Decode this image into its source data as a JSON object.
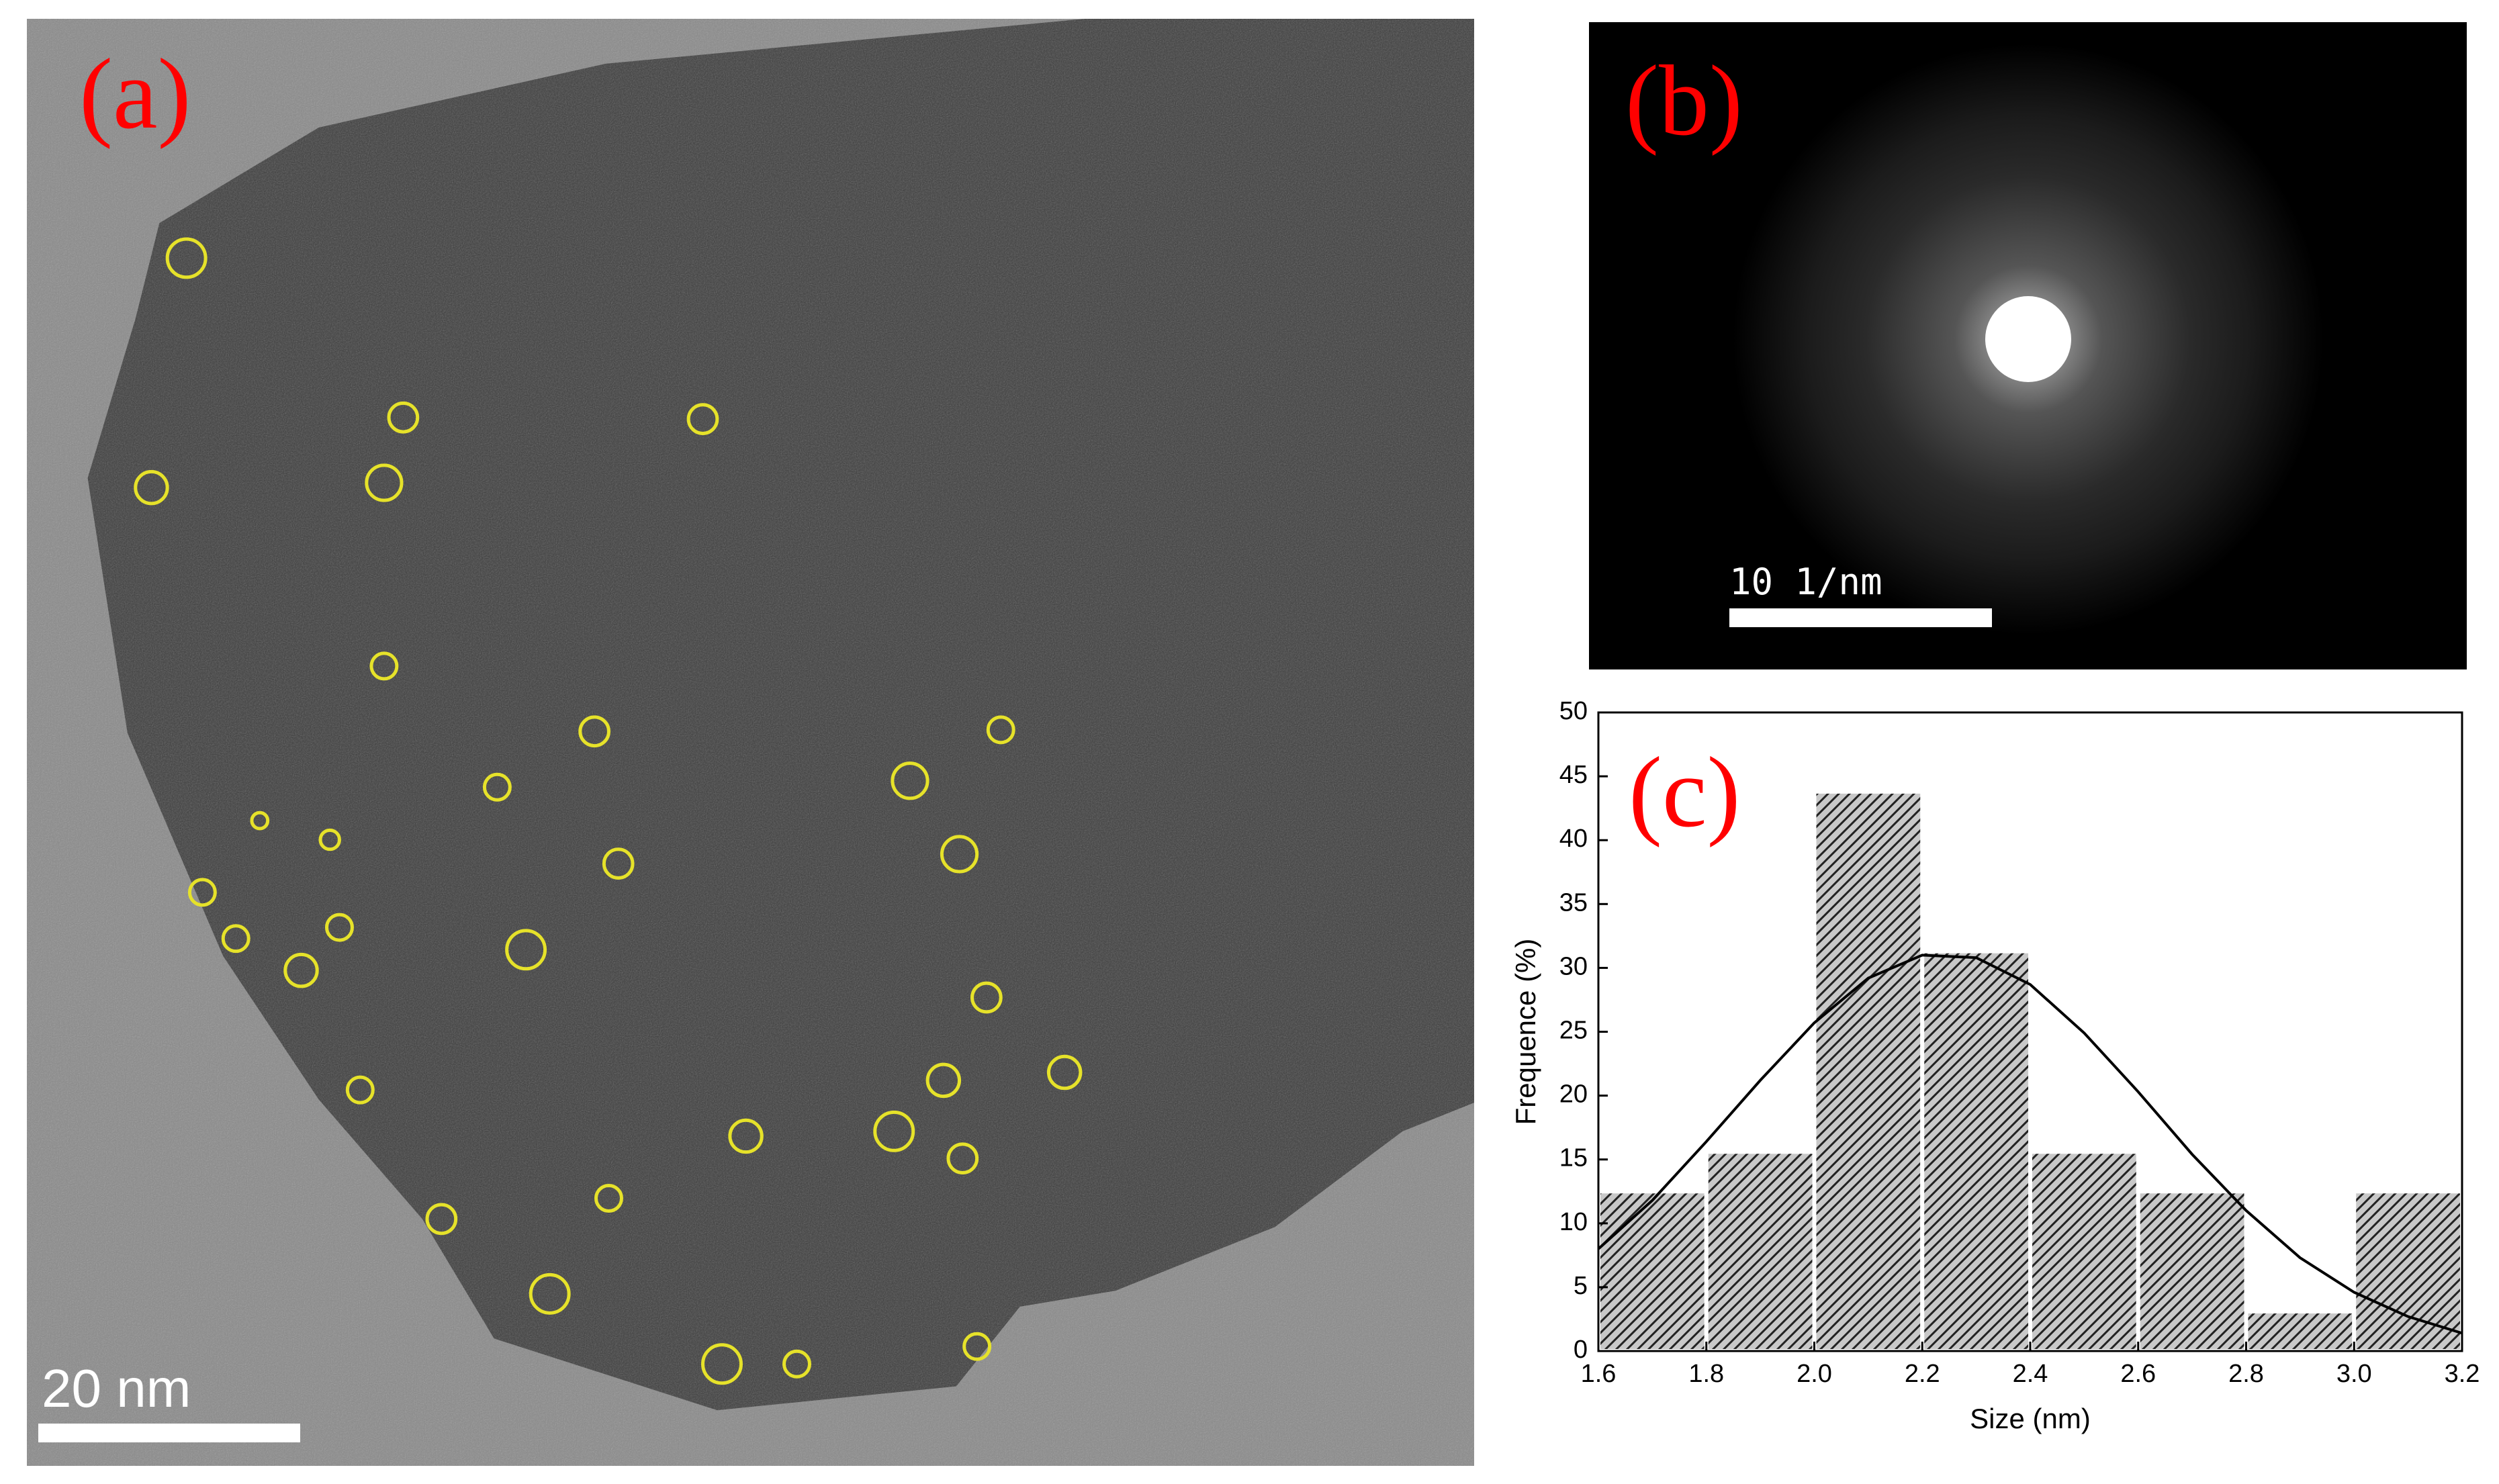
{
  "panel_a": {
    "label": "(a)",
    "scale_bar": "20 nm"
  },
  "panel_b": {
    "label": "(b)",
    "scale_bar": "10 1/nm"
  },
  "chart_data": {
    "type": "histogram",
    "panel_label": "(c)",
    "x_label": "Size (nm)",
    "y_label": "Frequence (%)",
    "bins": [
      1.6,
      1.8,
      2.0,
      2.2,
      2.4,
      2.6,
      2.8,
      3.0,
      3.2
    ],
    "values": [
      12.5,
      15.6,
      43.8,
      31.3,
      15.6,
      12.5,
      3.1,
      12.5
    ],
    "color": "#c8c8c8",
    "hatch_color": "#222222",
    "fit": {
      "x": [
        1.6,
        1.7,
        1.8,
        1.9,
        2.0,
        2.1,
        2.2,
        2.3,
        2.4,
        2.5,
        2.6,
        2.7,
        2.8,
        2.9,
        3.0,
        3.1,
        3.2
      ],
      "values": [
        8.0,
        11.8,
        16.4,
        21.2,
        25.7,
        29.2,
        31.0,
        30.8,
        28.7,
        24.9,
        20.3,
        15.4,
        11.0,
        7.3,
        4.6,
        2.7,
        1.4
      ],
      "color": "#000000"
    },
    "xlim": [
      1.6,
      3.2
    ],
    "xticks": [
      1.6,
      1.8,
      {
        "value": 2,
        "label": "2.0"
      },
      2.2,
      2.4,
      2.6,
      2.8,
      {
        "value": 3,
        "label": "3.0"
      },
      3.2
    ],
    "ylim": [
      0,
      50
    ],
    "yticks": [
      0,
      5,
      10,
      15,
      20,
      25,
      30,
      35,
      40,
      45,
      50
    ]
  }
}
